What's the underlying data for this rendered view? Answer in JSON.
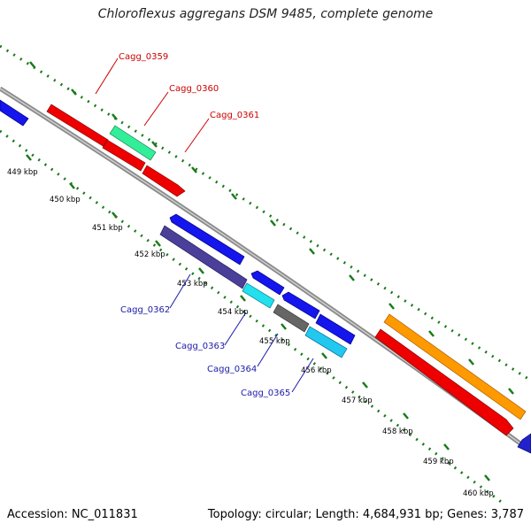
{
  "title": "Chloroflexus aggregans DSM 9485, complete genome",
  "footer": {
    "accession": "Accession: NC_011831",
    "summary": "Topology: circular; Length: 4,684,931 bp; Genes: 3,787"
  },
  "colors": {
    "backbone": "#888888",
    "tick": "#1a7a1a",
    "forward_label": "#cc0000",
    "reverse_label": "#1a1aa8"
  },
  "scale_labels": [
    "449 kbp",
    "450 kbp",
    "451 kbp",
    "452 kbp",
    "453 kbp",
    "454 kbp",
    "455 kbp",
    "456 kbp",
    "457 kbp",
    "458 kbp",
    "459 kbp",
    "460 kbp"
  ],
  "gene_labels_forward": [
    "Cagg_0359",
    "Cagg_0360",
    "Cagg_0361"
  ],
  "gene_labels_reverse": [
    "Cagg_0362",
    "Cagg_0363",
    "Cagg_0364",
    "Cagg_0365"
  ]
}
